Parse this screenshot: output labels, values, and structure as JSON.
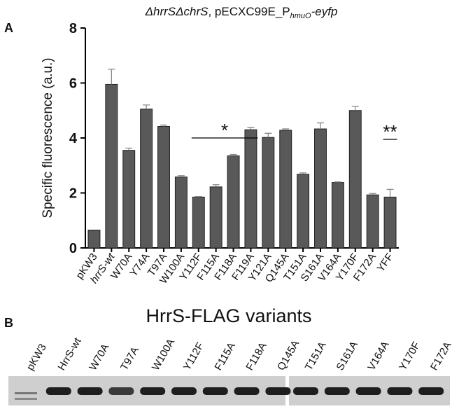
{
  "panel_labels": [
    "A",
    "B"
  ],
  "chart_data": {
    "type": "bar",
    "title": [
      "ΔhrrSΔchrS",
      ", pECXC99E_P",
      "hmuO",
      "-eyfp"
    ],
    "y_label": "Specific fluorescence (a.u.)",
    "categories": [
      "pKW3",
      "hrrS-wt",
      "W70A",
      "Y74A",
      "T97A",
      "W100A",
      "Y112F",
      "F115A",
      "F118A",
      "F119A",
      "Y121A",
      "Q145A",
      "T151A",
      "S161A",
      "V164A",
      "Y170F",
      "F172A",
      "YFF"
    ],
    "values": [
      0.65,
      5.95,
      3.55,
      5.05,
      4.42,
      2.58,
      1.85,
      2.22,
      3.35,
      4.3,
      4.02,
      4.28,
      2.68,
      4.33,
      2.38,
      5.0,
      1.93,
      1.85
    ],
    "errors": [
      0,
      0.55,
      0.08,
      0.15,
      0.05,
      0.05,
      0.02,
      0.08,
      0.05,
      0.08,
      0.15,
      0.05,
      0.05,
      0.22,
      0.02,
      0.15,
      0.05,
      0.28
    ],
    "color": "#595959",
    "ylim": [
      0,
      8
    ],
    "yticks": [
      0,
      2,
      4,
      6,
      8
    ],
    "annotations": [
      "*",
      "**"
    ]
  },
  "blot": {
    "title": "HrrS-FLAG variants",
    "lanes_left": [
      "pKW3",
      "HrrS-wt",
      "W70A",
      "T97A",
      "W100A",
      "Y112F",
      "F115A",
      "F118A",
      "Q145A"
    ],
    "lanes_right": [
      "T151A",
      "S161A",
      "V164A",
      "Y170F",
      "F172A"
    ]
  }
}
